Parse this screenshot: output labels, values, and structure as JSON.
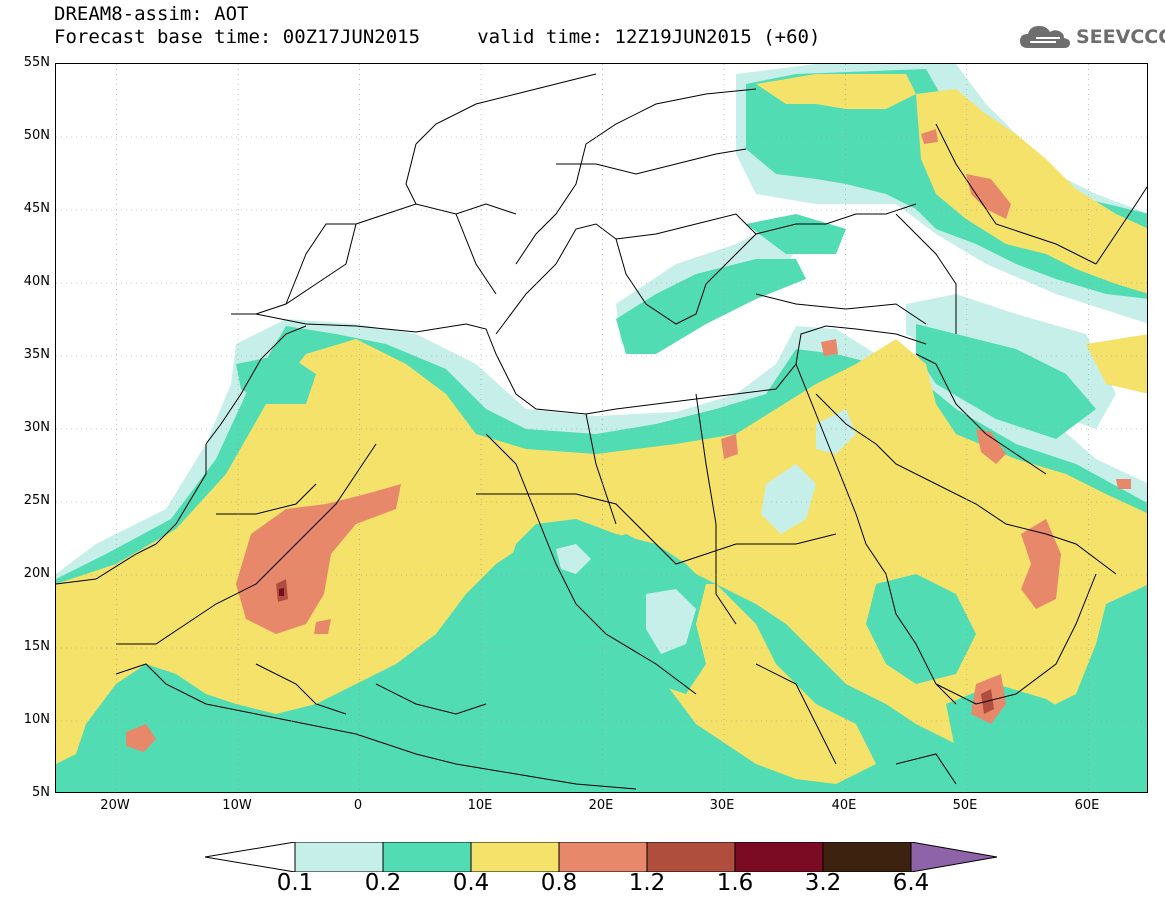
{
  "title": {
    "line1": "DREAM8-assim: AOT",
    "line2": "Forecast base time: 00Z17JUN2015     valid time: 12Z19JUN2015 (+60)"
  },
  "logo": {
    "text": "SEEVCCC",
    "icon": "cloud-icon",
    "color": "#6e6e6e"
  },
  "map": {
    "lon_range": [
      -25,
      65
    ],
    "lat_range": [
      5,
      55
    ],
    "lat_ticks": [
      "55N",
      "50N",
      "45N",
      "40N",
      "35N",
      "30N",
      "25N",
      "20N",
      "15N",
      "10N",
      "5N"
    ],
    "lon_ticks": [
      "20W",
      "10W",
      "0",
      "10E",
      "20E",
      "30E",
      "40E",
      "50E",
      "60E"
    ]
  },
  "legend": {
    "levels": [
      "0.1",
      "0.2",
      "0.4",
      "0.8",
      "1.2",
      "1.6",
      "3.2",
      "6.4"
    ],
    "colors": [
      "#ffffff",
      "#c6efe9",
      "#52dcb3",
      "#f5e26b",
      "#e8886a",
      "#b04e3e",
      "#7a0b23",
      "#3d2210",
      "#8f63a8"
    ]
  }
}
